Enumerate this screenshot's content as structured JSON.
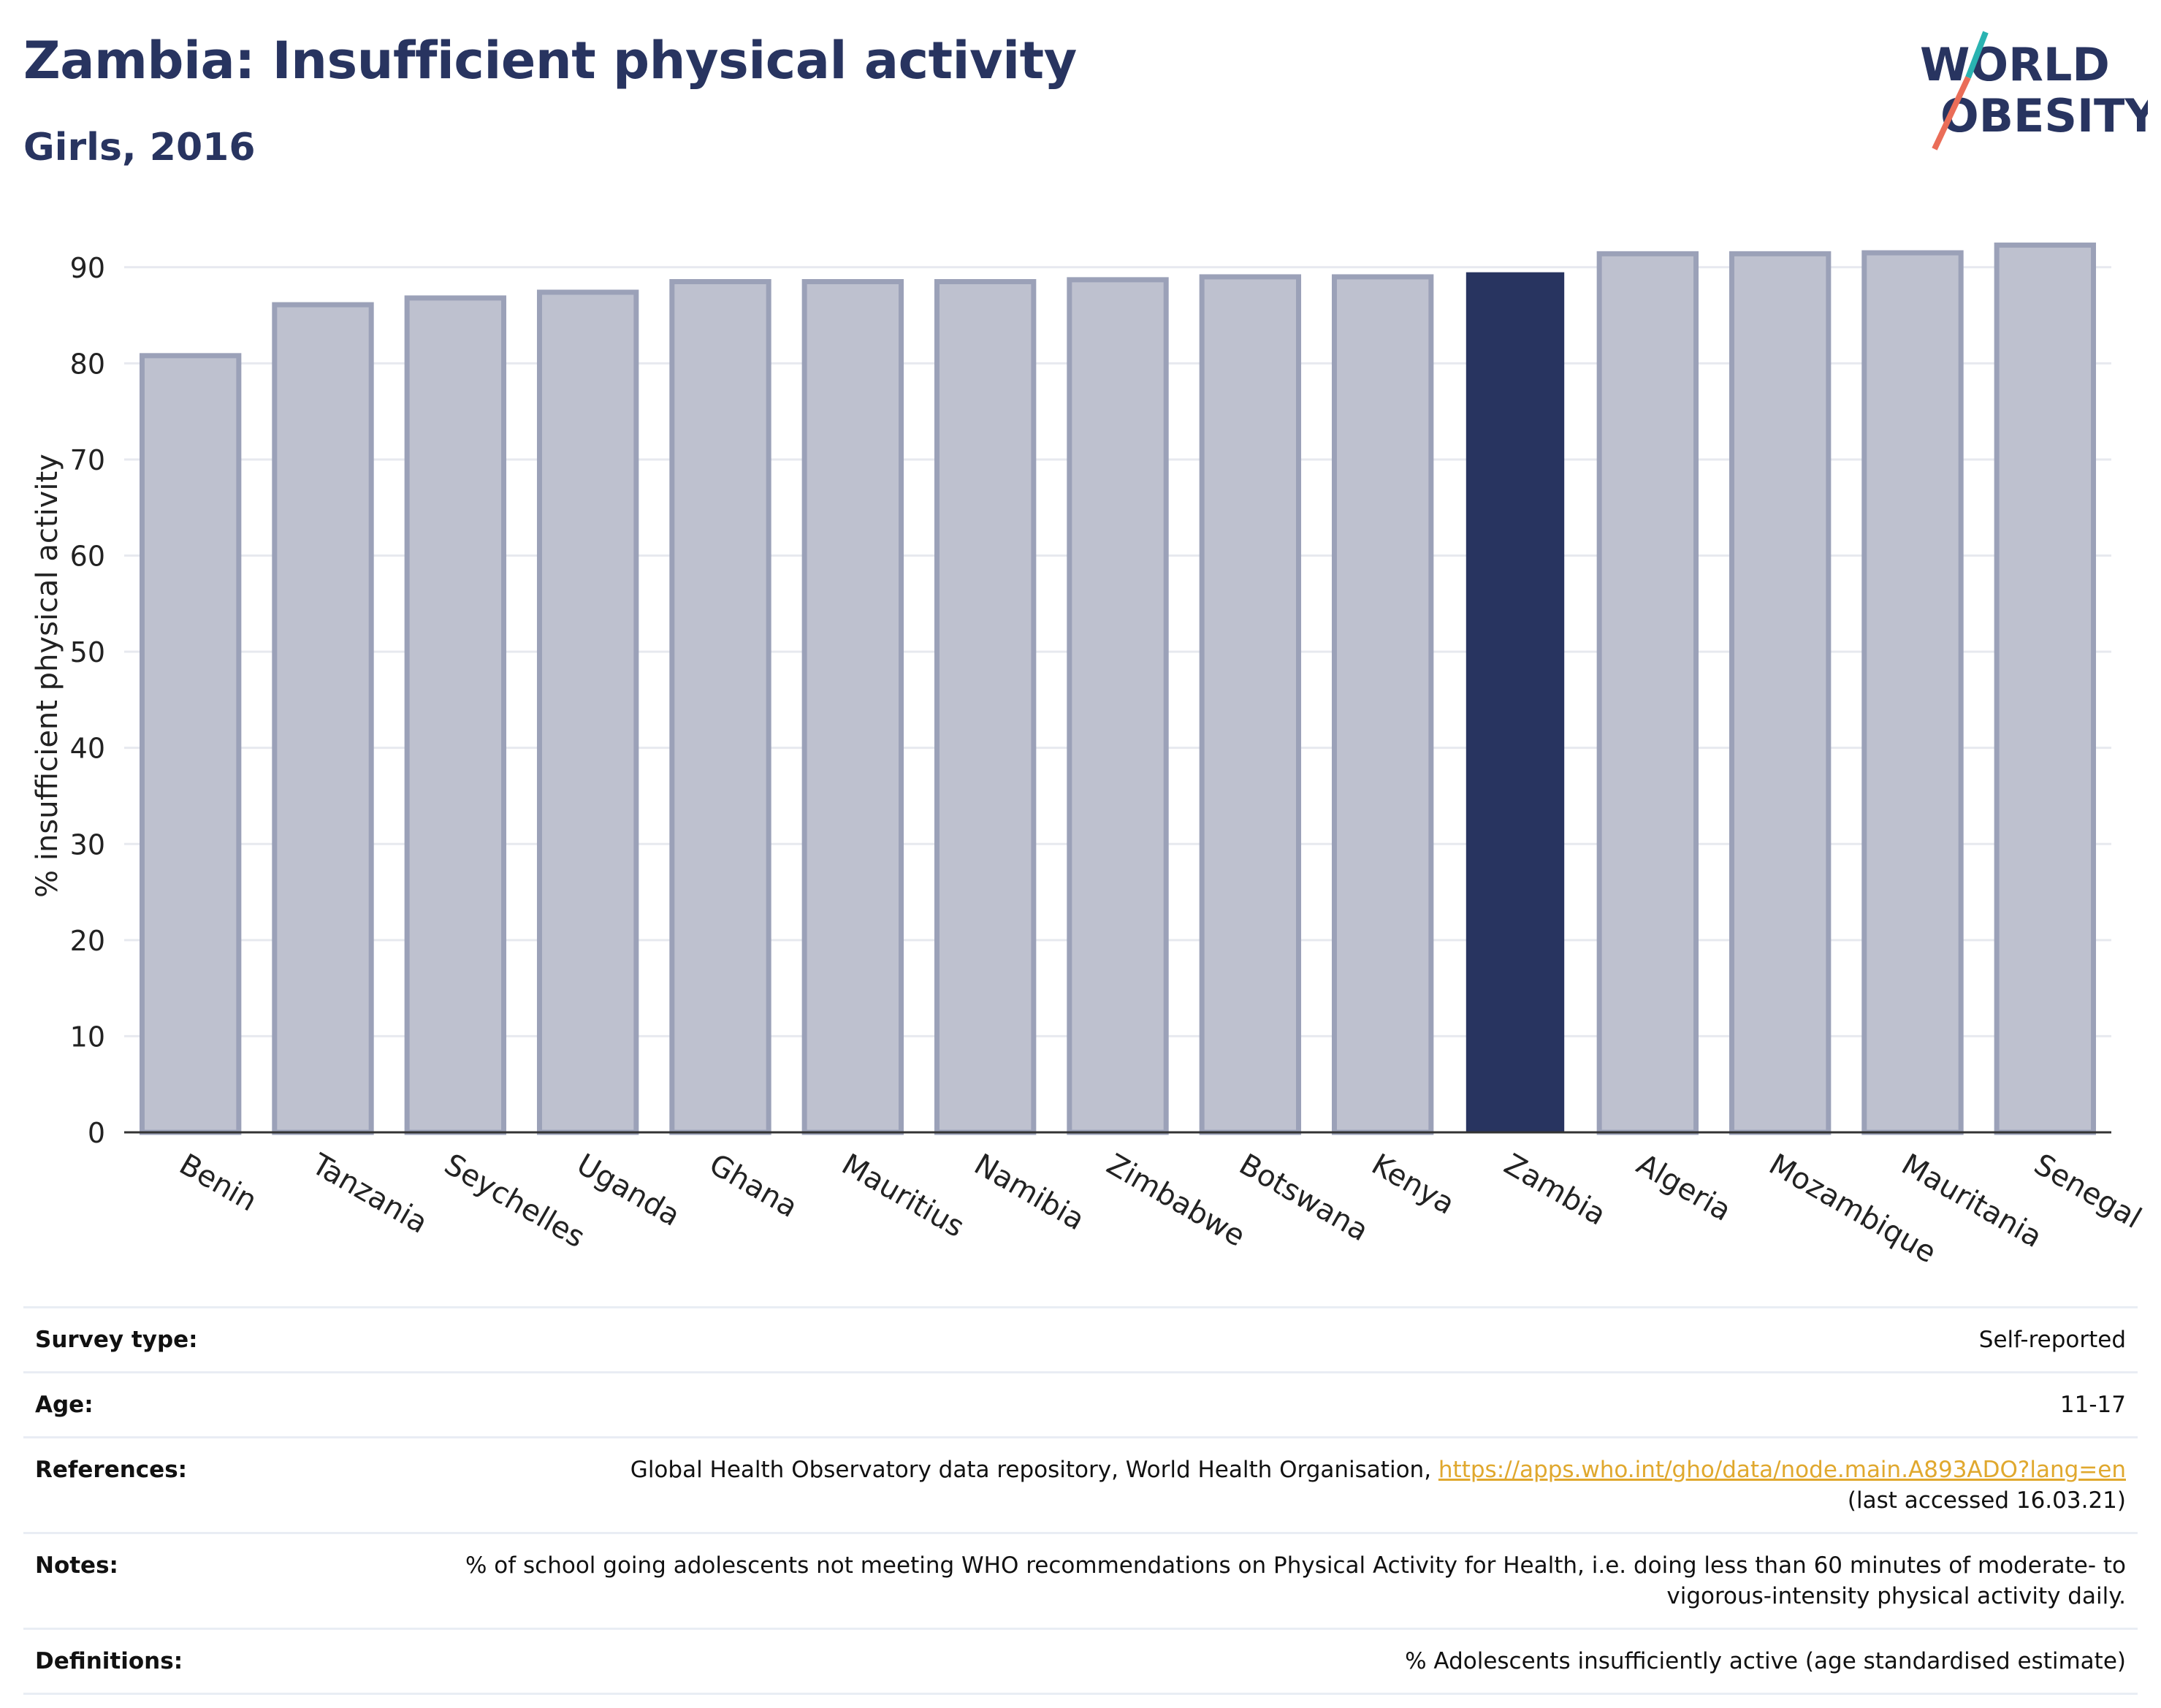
{
  "header": {
    "title": "Zambia: Insufficient physical activity",
    "subtitle": "Girls, 2016"
  },
  "logo": {
    "line1": "WORLD",
    "line2": "OBESITY"
  },
  "colors": {
    "title": "#283460",
    "bar": "#bec1cf",
    "bar_border": "#9ba1b8",
    "highlight": "#283460",
    "link": "#e0a82e",
    "logo_teal": "#2ab3b1",
    "logo_coral": "#ea6d58"
  },
  "chart_data": {
    "type": "bar",
    "title": "",
    "xlabel": "",
    "ylabel": "% insufficient physical activity",
    "ylim": [
      0,
      95
    ],
    "yticks": [
      0,
      10,
      20,
      30,
      40,
      50,
      60,
      70,
      80,
      90
    ],
    "grid": true,
    "highlight": "Zambia",
    "categories": [
      "Benin",
      "Tanzania",
      "Seychelles",
      "Uganda",
      "Ghana",
      "Mauritius",
      "Namibia",
      "Zimbabwe",
      "Botswana",
      "Kenya",
      "Zambia",
      "Algeria",
      "Mozambique",
      "Mauritania",
      "Senegal"
    ],
    "values": [
      80.8,
      86.1,
      86.8,
      87.4,
      88.5,
      88.5,
      88.5,
      88.7,
      89.0,
      89.0,
      89.4,
      91.4,
      91.4,
      91.5,
      92.3
    ]
  },
  "meta": [
    {
      "key": "Survey type:",
      "value": "Self-reported"
    },
    {
      "key": "Age:",
      "value": "11-17"
    },
    {
      "key": "References:",
      "value": "Global Health Observatory data repository, World Health Organisation, ",
      "link": "https://apps.who.int/gho/data/node.main.A893ADO?lang=en",
      "extra": "(last accessed 16.03.21)"
    },
    {
      "key": "Notes:",
      "value": "% of school going adolescents not meeting WHO recommendations on Physical Activity for Health, i.e. doing less than 60 minutes of moderate- to vigorous-intensity physical activity daily."
    },
    {
      "key": "Definitions:",
      "value": "% Adolescents insufficiently active (age standardised estimate)"
    }
  ]
}
